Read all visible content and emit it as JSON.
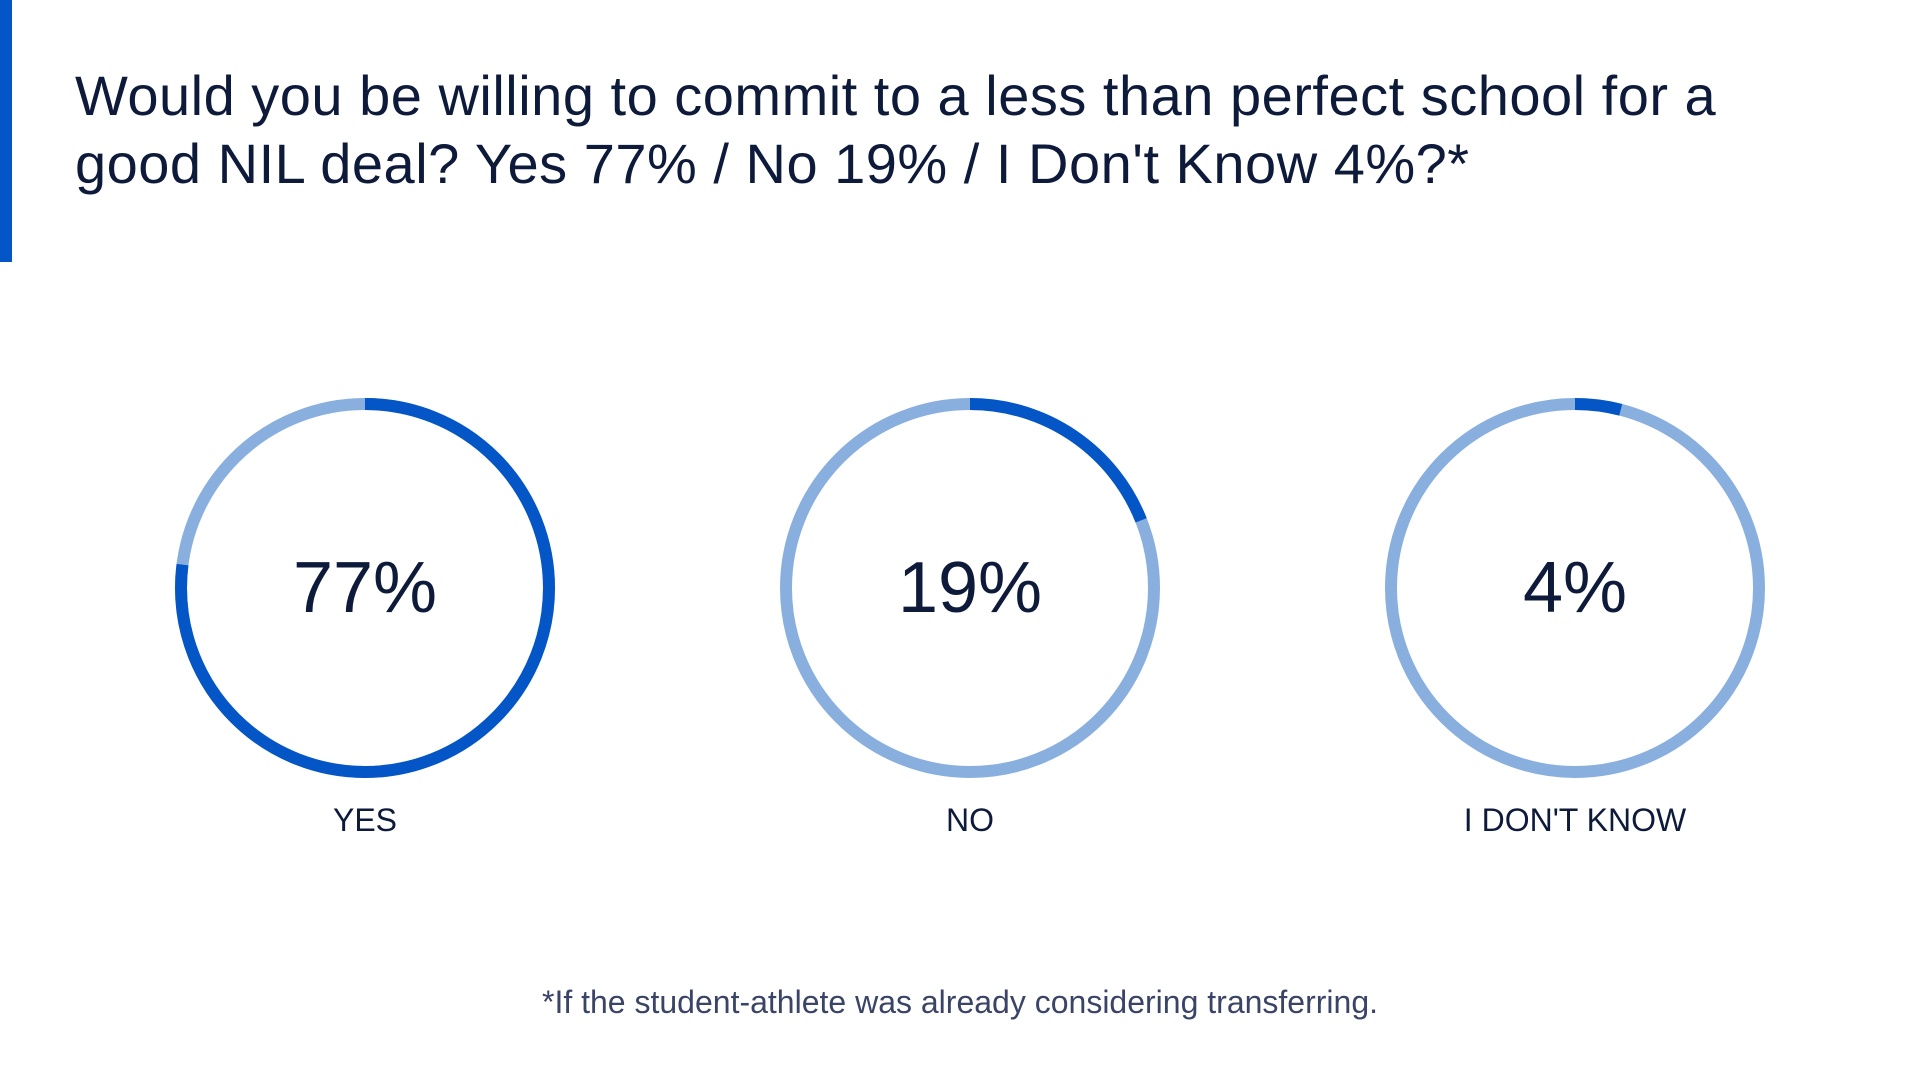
{
  "title": "Would you be willing to commit to a less than perfect school for a good NIL deal? Yes 77% / No 19% / I Don't Know 4%?*",
  "footnote": "*If the student-athlete was already considering transferring.",
  "colors": {
    "accent": "#0456c6",
    "track": "#89afdf",
    "text": "#0d1a3a"
  },
  "chart_data": {
    "type": "pie",
    "categories": [
      "YES",
      "NO",
      "I DON'T KNOW"
    ],
    "values": [
      77,
      19,
      4
    ],
    "value_labels": [
      "77%",
      "19%",
      "4%"
    ],
    "unit": "%"
  }
}
